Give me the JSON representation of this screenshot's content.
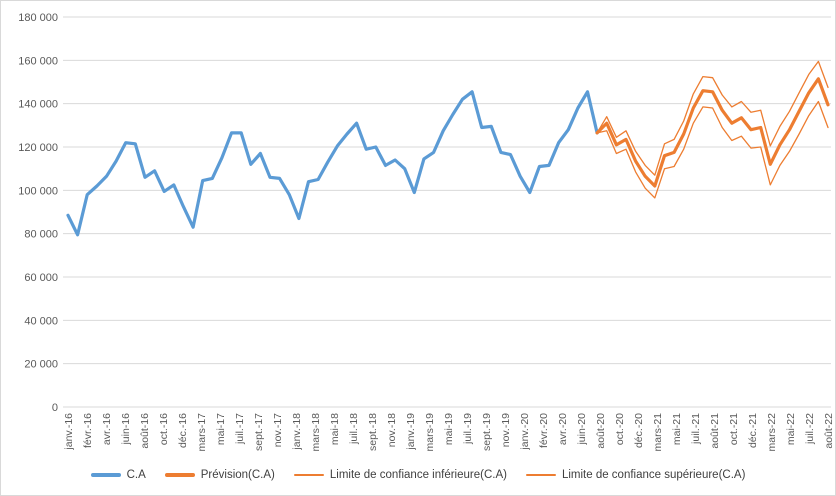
{
  "chart": {
    "background_color": "#FFFFFF",
    "border_color": "#D9D9D9",
    "gridline_color": "#D9D9D9",
    "axis_text_color": "#595959",
    "legend_text_color": "#404040",
    "historical_color": "#5B9BD5",
    "forecast_color": "#ED7D31"
  },
  "chart_data": {
    "type": "line",
    "title": "",
    "xlabel": "",
    "ylabel": "",
    "ylim": [
      0,
      180000
    ],
    "y_tick_interval": 20000,
    "grid": "horizontal",
    "legend_position": "bottom",
    "y_tick_labels": [
      "0",
      "20 000",
      "40 000",
      "60 000",
      "80 000",
      "100 000",
      "120 000",
      "140 000",
      "160 000",
      "180 000"
    ],
    "x_tick_labels": [
      "janv.-16",
      "févr.-16",
      "avr.-16",
      "juin-16",
      "août-16",
      "oct.-16",
      "déc.-16",
      "mars-17",
      "mai-17",
      "juil.-17",
      "sept.-17",
      "nov.-17",
      "janv.-18",
      "mars-18",
      "mai-18",
      "juil.-18",
      "sept.-18",
      "nov.-18",
      "janv.-19",
      "mars-19",
      "mai-19",
      "juil.-19",
      "sept.-19",
      "nov.-19",
      "janv.-20",
      "févr.-20",
      "avr.-20",
      "juin-20",
      "août-20",
      "oct.-20",
      "déc.-20",
      "mars-21",
      "mai-21",
      "juil.-21",
      "août-21",
      "oct.-21",
      "déc.-21",
      "mars-22",
      "mai-22",
      "juil.-22",
      "août-22"
    ],
    "x_total_points": 80,
    "x_range_note": "monthly points from janv.-16 to août-22",
    "series": [
      {
        "name": "C.A",
        "color": "#5B9BD5",
        "stroke_width": 3.2,
        "start_index": 0,
        "values": [
          88500,
          79500,
          98000,
          102000,
          106500,
          113500,
          122000,
          121500,
          106000,
          109000,
          99500,
          102500,
          92500,
          83000,
          104500,
          105500,
          115000,
          126500,
          126500,
          112000,
          117000,
          106000,
          105500,
          98000,
          87000,
          104000,
          105000,
          113000,
          120500,
          126000,
          131000,
          119000,
          120000,
          111500,
          114000,
          110000,
          99000,
          114500,
          117500,
          127500,
          135000,
          142000,
          145500,
          129000,
          129500,
          117500,
          116500,
          106500,
          99000,
          111000,
          111500,
          122000,
          128000,
          138000,
          145500,
          126500
        ]
      },
      {
        "name": "Prévision(C.A)",
        "color": "#ED7D31",
        "stroke_width": 3.2,
        "start_index": 55,
        "values": [
          126500,
          131000,
          121000,
          123500,
          113500,
          106500,
          102000,
          116000,
          117500,
          126000,
          138000,
          146000,
          145500,
          137000,
          131000,
          133500,
          128000,
          129000,
          112000,
          121000,
          128000,
          136500,
          145000,
          151500,
          139500
        ]
      },
      {
        "name": "Limite de confiance inférieure(C.A)",
        "color": "#ED7D31",
        "stroke_width": 1.3,
        "start_index": 55,
        "values": [
          126500,
          127500,
          117000,
          119000,
          108500,
          101000,
          96500,
          110000,
          111000,
          119000,
          131000,
          138500,
          138000,
          129000,
          123000,
          125000,
          119500,
          120000,
          102500,
          111500,
          118000,
          126000,
          134500,
          141000,
          129000
        ]
      },
      {
        "name": "Limite de confiance supérieure(C.A)",
        "color": "#ED7D31",
        "stroke_width": 1.3,
        "start_index": 55,
        "values": [
          126500,
          134000,
          124500,
          127500,
          118000,
          111500,
          107000,
          121500,
          123500,
          132000,
          144500,
          152500,
          152000,
          144000,
          138500,
          141000,
          136000,
          137000,
          120500,
          129500,
          136500,
          145000,
          153500,
          159500,
          147500
        ]
      }
    ]
  }
}
